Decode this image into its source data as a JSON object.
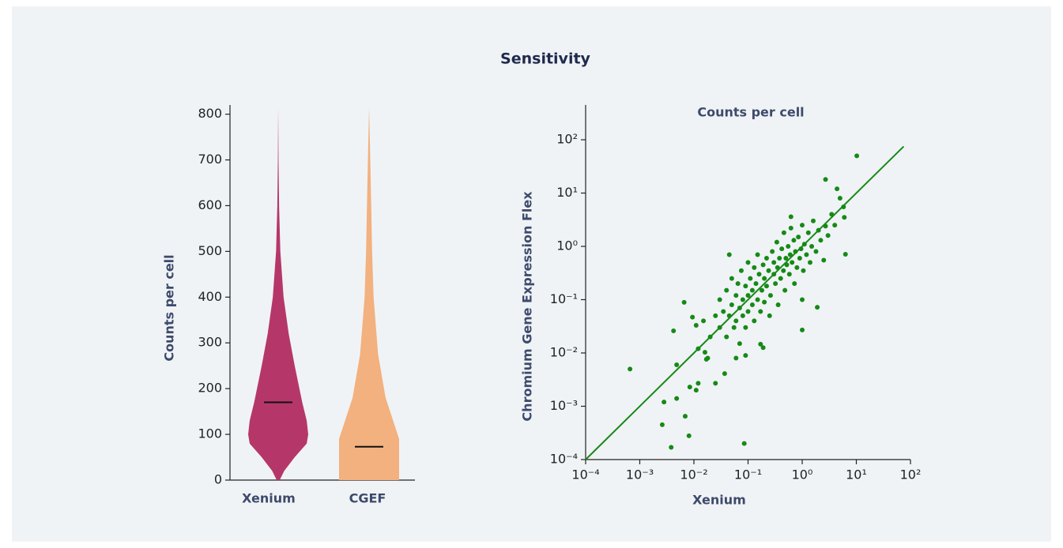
{
  "title": "Sensitivity",
  "chart_data": [
    {
      "type": "violin",
      "y_label": "Counts per cell",
      "categories": [
        "Xenium",
        "CGEF"
      ],
      "ylim": [
        0,
        820
      ],
      "yticks": [
        0,
        100,
        200,
        300,
        400,
        500,
        600,
        700,
        800
      ],
      "series": [
        {
          "color": "#b5376a",
          "median": 170,
          "profile_y": [
            0,
            20,
            50,
            80,
            100,
            130,
            170,
            250,
            320,
            400,
            500,
            600,
            700,
            815
          ],
          "profile_width": [
            0.05,
            0.2,
            0.55,
            0.95,
            1.0,
            0.95,
            0.8,
            0.55,
            0.35,
            0.18,
            0.07,
            0.03,
            0.01,
            0
          ]
        },
        {
          "color": "#f2b17f",
          "median": 73,
          "profile_y": [
            0,
            90,
            180,
            275,
            400,
            500,
            600,
            700,
            815
          ],
          "profile_width": [
            1.0,
            1.0,
            0.55,
            0.3,
            0.15,
            0.1,
            0.07,
            0.04,
            0
          ]
        }
      ]
    },
    {
      "type": "scatter",
      "title": "Counts per cell",
      "x_label": "Xenium",
      "y_label": "Chromium Gene Expression Flex",
      "log_scale": true,
      "color": "#168a16",
      "xlim": [
        0.0001,
        100
      ],
      "ylim": [
        0.0001,
        450
      ],
      "xticks": [
        {
          "value": 0.0001,
          "label": "10⁻⁴"
        },
        {
          "value": 0.001,
          "label": "10⁻³"
        },
        {
          "value": 0.01,
          "label": "10⁻²"
        },
        {
          "value": 0.1,
          "label": "10⁻¹"
        },
        {
          "value": 1,
          "label": "10⁰"
        },
        {
          "value": 10,
          "label": "10¹"
        },
        {
          "value": 100,
          "label": "10²"
        }
      ],
      "yticks": [
        {
          "value": 0.0001,
          "label": "10⁻⁴"
        },
        {
          "value": 0.001,
          "label": "10⁻³"
        },
        {
          "value": 0.01,
          "label": "10⁻²"
        },
        {
          "value": 0.1,
          "label": "10⁻¹"
        },
        {
          "value": 1,
          "label": "10⁰"
        },
        {
          "value": 10,
          "label": "10¹"
        },
        {
          "value": 100,
          "label": "10²"
        }
      ],
      "x": [
        0.00066,
        10.2,
        0.085,
        0.0038,
        0.0081,
        0.0026,
        0.0028,
        0.0048,
        0.0069,
        0.0048,
        0.0042,
        0.0066,
        0.0094,
        0.011,
        0.0084,
        0.011,
        0.012,
        0.016,
        0.017,
        0.025,
        0.037,
        2.7,
        6.3,
        2.7,
        4.4,
        5.8,
        1.9,
        1.0,
        1.0,
        0.19,
        0.17,
        0.62,
        0.02,
        0.025,
        0.03,
        0.03,
        0.035,
        0.04,
        0.04,
        0.045,
        0.05,
        0.05,
        0.055,
        0.06,
        0.06,
        0.065,
        0.07,
        0.07,
        0.075,
        0.08,
        0.08,
        0.09,
        0.09,
        0.1,
        0.1,
        0.1,
        0.11,
        0.12,
        0.12,
        0.13,
        0.13,
        0.14,
        0.15,
        0.15,
        0.16,
        0.17,
        0.18,
        0.19,
        0.2,
        0.2,
        0.22,
        0.22,
        0.24,
        0.25,
        0.26,
        0.28,
        0.3,
        0.3,
        0.32,
        0.34,
        0.35,
        0.36,
        0.38,
        0.4,
        0.42,
        0.45,
        0.46,
        0.48,
        0.5,
        0.52,
        0.55,
        0.58,
        0.6,
        0.62,
        0.65,
        0.7,
        0.72,
        0.75,
        0.8,
        0.85,
        0.9,
        0.95,
        1.0,
        1.05,
        1.1,
        1.2,
        1.3,
        1.4,
        1.5,
        1.6,
        1.8,
        2.0,
        2.2,
        2.5,
        3.0,
        3.5,
        4.0,
        5.0,
        6.0,
        0.012,
        0.015,
        0.018,
        0.06,
        0.09,
        0.045
      ],
      "values": [
        0.005,
        50,
        0.0002,
        0.00017,
        0.00028,
        0.00045,
        0.0012,
        0.0014,
        0.00065,
        0.006,
        0.026,
        0.089,
        0.047,
        0.033,
        0.0023,
        0.002,
        0.0027,
        0.0103,
        0.0076,
        0.0027,
        0.0041,
        2.4,
        0.71,
        18,
        12,
        5.5,
        0.072,
        0.1,
        0.027,
        0.0126,
        0.0146,
        3.6,
        0.02,
        0.05,
        0.03,
        0.1,
        0.06,
        0.02,
        0.15,
        0.05,
        0.08,
        0.25,
        0.03,
        0.12,
        0.04,
        0.2,
        0.07,
        0.015,
        0.35,
        0.1,
        0.05,
        0.18,
        0.03,
        0.12,
        0.5,
        0.06,
        0.25,
        0.08,
        0.15,
        0.4,
        0.04,
        0.2,
        0.1,
        0.7,
        0.3,
        0.06,
        0.15,
        0.45,
        0.25,
        0.09,
        0.6,
        0.18,
        0.35,
        0.05,
        0.12,
        0.8,
        0.3,
        0.5,
        0.2,
        1.2,
        0.4,
        0.08,
        0.6,
        0.25,
        0.9,
        0.35,
        1.8,
        0.15,
        0.6,
        0.45,
        1.0,
        0.3,
        0.7,
        2.2,
        0.5,
        1.3,
        0.2,
        0.8,
        0.4,
        1.5,
        0.6,
        0.9,
        2.5,
        0.35,
        1.1,
        0.7,
        1.8,
        0.5,
        1.0,
        3.0,
        0.8,
        2.0,
        1.3,
        0.55,
        1.6,
        4.0,
        2.5,
        8.0,
        3.5,
        0.012,
        0.04,
        0.008,
        0.008,
        0.009,
        0.7
      ],
      "fit_line": {
        "x": [
          0.0001,
          75
        ],
        "values": [
          0.0001,
          75
        ]
      }
    }
  ]
}
